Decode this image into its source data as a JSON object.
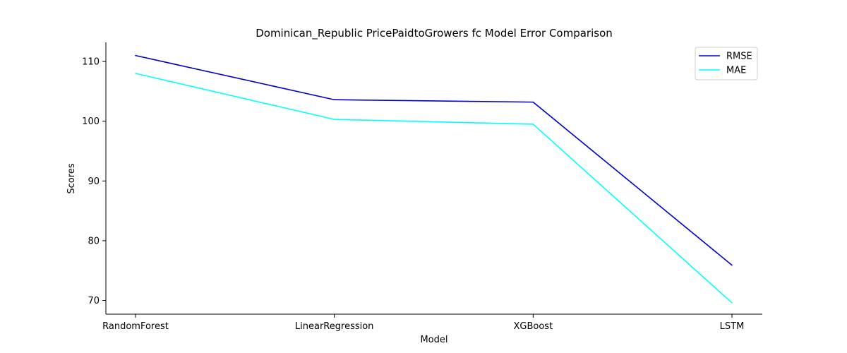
{
  "chart_data": {
    "type": "line",
    "title": "Dominican_Republic PricePaidtoGrowers fc Model Error Comparison",
    "xlabel": "Model",
    "ylabel": "Scores",
    "categories": [
      "RandomForest",
      "LinearRegression",
      "XGBoost",
      "LSTM"
    ],
    "series": [
      {
        "name": "RMSE",
        "color": "#0000cd",
        "values": [
          111.0,
          103.6,
          103.2,
          75.9
        ]
      },
      {
        "name": "MAE",
        "color": "#00ffff",
        "values": [
          108.0,
          100.3,
          99.5,
          69.6
        ]
      }
    ],
    "ylim": [
      67.7,
      113.2
    ],
    "yticks": [
      70,
      80,
      90,
      100,
      110
    ],
    "grid": false,
    "legend": "top-right"
  }
}
